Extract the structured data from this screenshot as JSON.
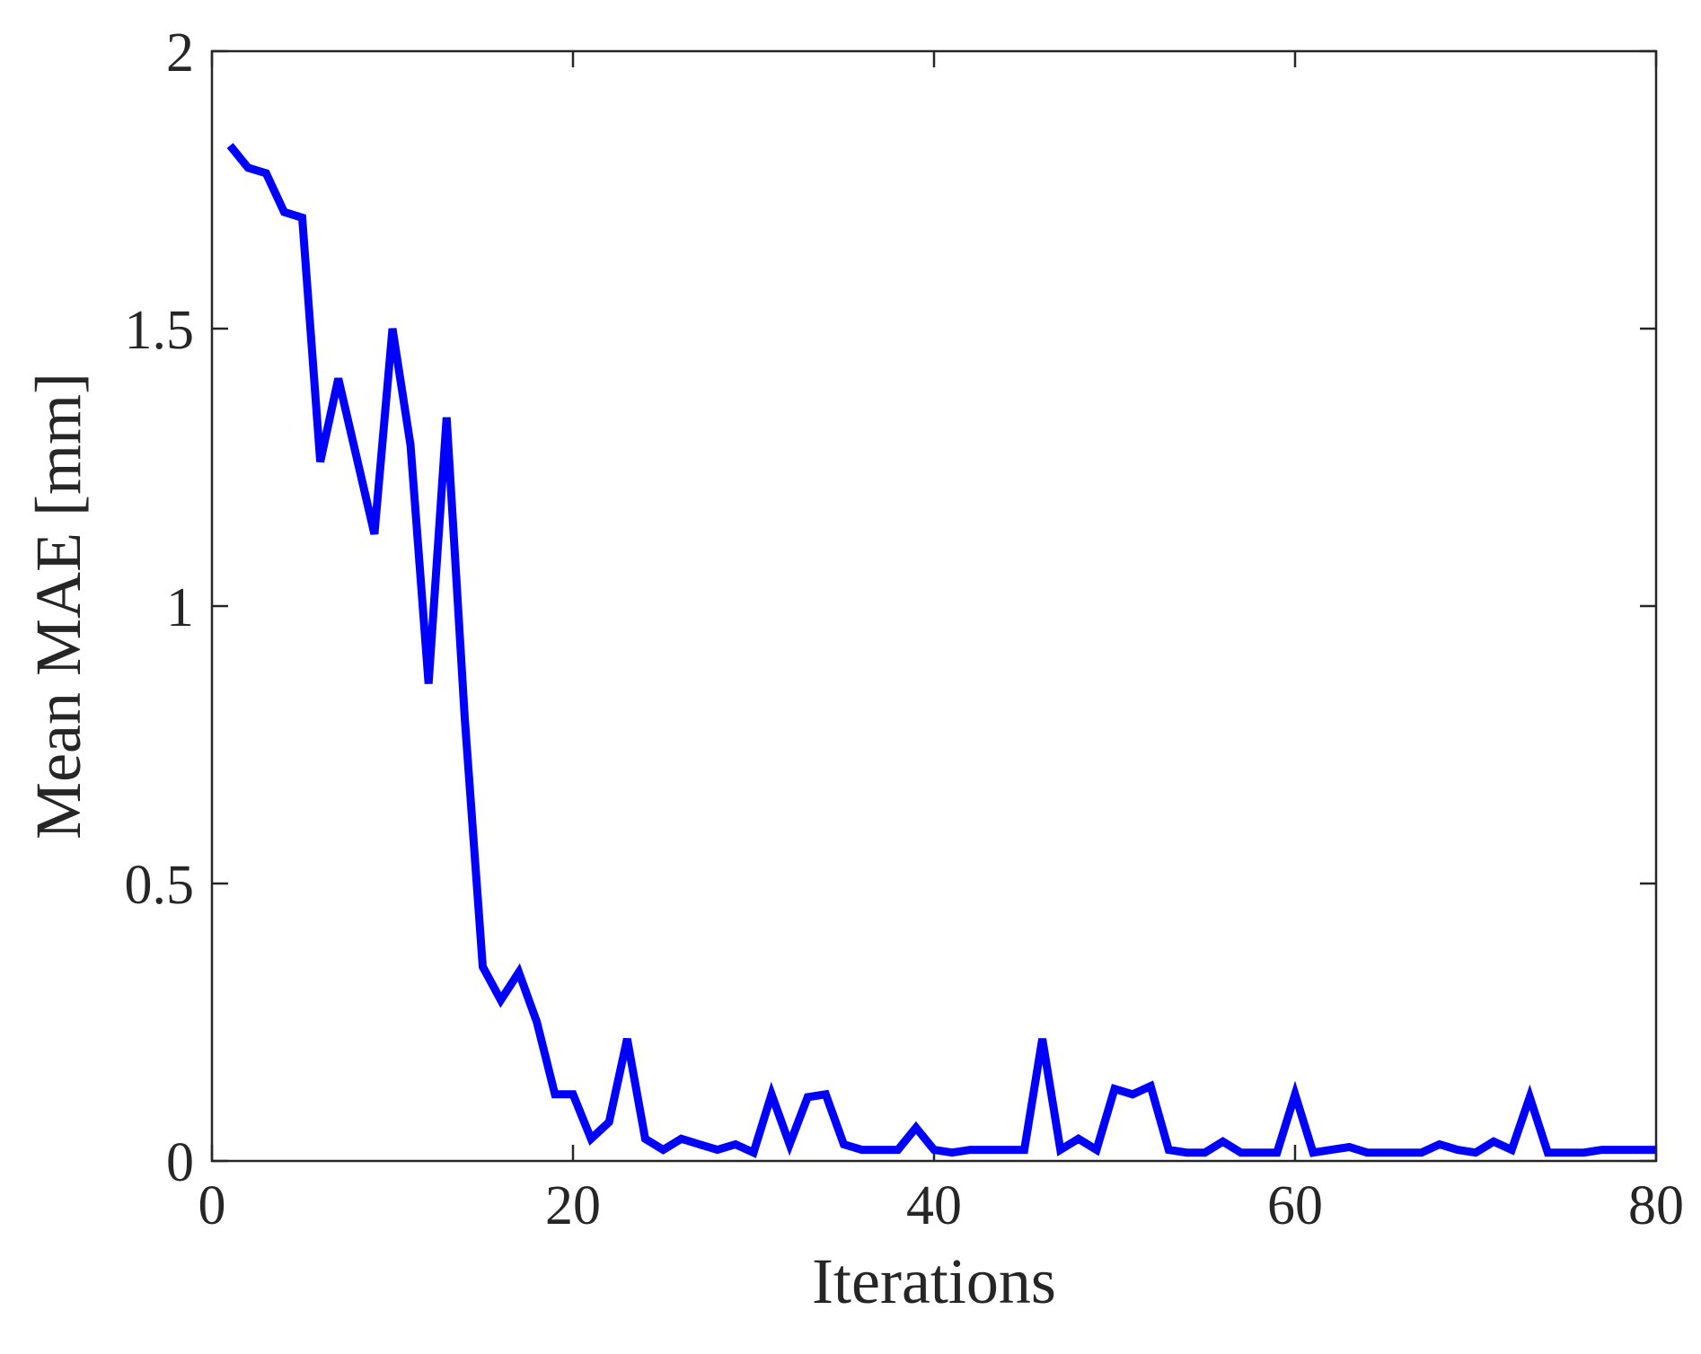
{
  "chart_data": {
    "type": "line",
    "title": "",
    "xlabel": "Iterations",
    "ylabel": "Mean MAE [mm]",
    "xlim": [
      0,
      80
    ],
    "ylim": [
      0,
      2
    ],
    "xticks": [
      0,
      20,
      40,
      60,
      80
    ],
    "xtick_labels": [
      "0",
      "20",
      "40",
      "60",
      "80"
    ],
    "yticks": [
      0,
      0.5,
      1,
      1.5,
      2
    ],
    "ytick_labels": [
      "0",
      "0.5",
      "1",
      "1.5",
      "2"
    ],
    "grid": false,
    "series": [
      {
        "color": "#0000ff",
        "x": [
          1,
          2,
          3,
          4,
          5,
          6,
          7,
          8,
          9,
          10,
          11,
          12,
          13,
          14,
          15,
          16,
          17,
          18,
          19,
          20,
          21,
          22,
          23,
          24,
          25,
          26,
          27,
          28,
          29,
          30,
          31,
          32,
          33,
          34,
          35,
          36,
          37,
          38,
          39,
          40,
          41,
          42,
          43,
          44,
          45,
          46,
          47,
          48,
          49,
          50,
          51,
          52,
          53,
          54,
          55,
          56,
          57,
          58,
          59,
          60,
          61,
          62,
          63,
          64,
          65,
          66,
          67,
          68,
          69,
          70,
          71,
          72,
          73,
          74,
          75,
          76,
          77,
          78,
          79,
          80
        ],
        "y": [
          1.83,
          1.79,
          1.78,
          1.71,
          1.7,
          1.26,
          1.41,
          1.27,
          1.13,
          1.5,
          1.29,
          0.86,
          1.34,
          0.8,
          0.35,
          0.29,
          0.34,
          0.25,
          0.12,
          0.12,
          0.04,
          0.07,
          0.22,
          0.04,
          0.02,
          0.04,
          0.03,
          0.02,
          0.03,
          0.015,
          0.12,
          0.03,
          0.115,
          0.12,
          0.03,
          0.02,
          0.02,
          0.02,
          0.06,
          0.02,
          0.015,
          0.02,
          0.02,
          0.02,
          0.02,
          0.22,
          0.02,
          0.04,
          0.02,
          0.13,
          0.12,
          0.135,
          0.02,
          0.015,
          0.015,
          0.035,
          0.015,
          0.015,
          0.015,
          0.12,
          0.015,
          0.02,
          0.025,
          0.015,
          0.015,
          0.015,
          0.015,
          0.03,
          0.02,
          0.015,
          0.035,
          0.02,
          0.115,
          0.015,
          0.015,
          0.015,
          0.02,
          0.02,
          0.02,
          0.02
        ]
      }
    ]
  }
}
